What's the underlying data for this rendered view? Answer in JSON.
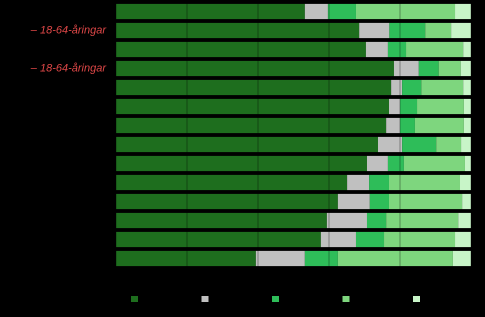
{
  "chart_data": {
    "type": "stacked-barh",
    "categories": [
      null,
      "– 18-64-åringar",
      null,
      "– 18-64-åringar",
      null,
      null,
      null,
      null,
      null,
      null,
      null,
      null,
      null,
      null
    ],
    "series": [
      {
        "color": "#1e6e1e",
        "values": [
          53.2,
          68.5,
          70.4,
          78.3,
          77.5,
          76.9,
          76.1,
          73.8,
          70.7,
          65.1,
          62.5,
          59.4,
          57.7,
          39.4
        ]
      },
      {
        "color": "#c0c0c0",
        "values": [
          6.5,
          8.5,
          6.2,
          7.0,
          3.1,
          3.1,
          3.9,
          6.8,
          5.9,
          6.2,
          9.0,
          11.3,
          9.9,
          13.8
        ]
      },
      {
        "color": "#2ebd59",
        "values": [
          7.9,
          10.1,
          5.1,
          5.6,
          5.4,
          4.8,
          4.2,
          9.6,
          4.5,
          5.6,
          5.4,
          5.4,
          7.9,
          9.3
        ]
      },
      {
        "color": "#7ed67e",
        "values": [
          27.9,
          7.3,
          16.1,
          6.2,
          11.8,
          13.2,
          13.8,
          7.0,
          17.2,
          20.0,
          20.6,
          20.3,
          20.0,
          32.4
        ]
      },
      {
        "color": "#c8f5c8",
        "values": [
          4.5,
          5.6,
          2.2,
          2.9,
          2.2,
          2.0,
          2.0,
          2.8,
          1.7,
          3.1,
          2.5,
          3.6,
          4.5,
          5.1
        ]
      }
    ],
    "xlim": [
      0,
      100
    ],
    "xticks": [
      0,
      20,
      40,
      60,
      80,
      100
    ],
    "grid": true
  }
}
